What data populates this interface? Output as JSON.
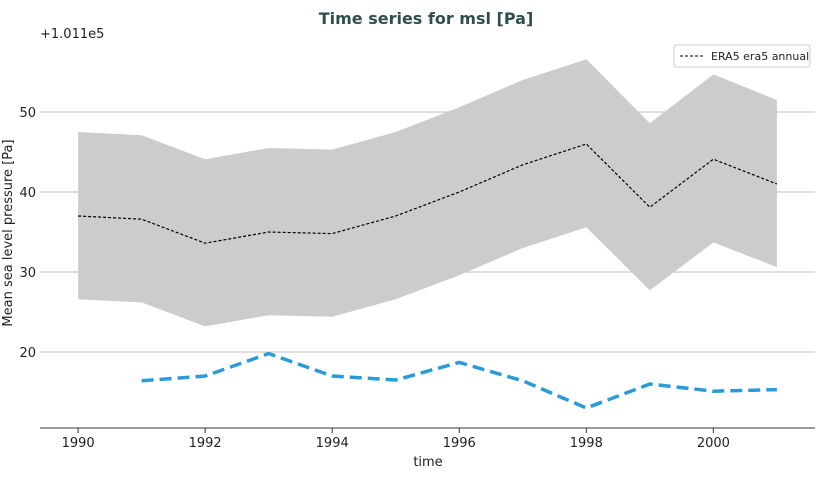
{
  "chart_data": {
    "type": "line",
    "title": "Time series for msl [Pa]",
    "xlabel": "time",
    "ylabel": "Mean sea level pressure [Pa]",
    "y_offset_label": "+1.011e5",
    "xlim": [
      1989.4,
      2001.6
    ],
    "ylim": [
      10.5,
      59.0
    ],
    "xticks": [
      1990,
      1992,
      1994,
      1996,
      1998,
      2000
    ],
    "yticks": [
      20,
      30,
      40,
      50
    ],
    "grid": "horizontal",
    "legend_position": "top-right",
    "legend": [
      "ERA5 era5 annual"
    ],
    "series": [
      {
        "name": "ERA5 era5 annual",
        "style": "dashed-thin",
        "color": "#000000",
        "x": [
          1990,
          1991,
          1992,
          1993,
          1994,
          1995,
          1996,
          1997,
          1998,
          1999,
          2000,
          2001
        ],
        "values": [
          37.0,
          36.6,
          33.6,
          35.0,
          34.8,
          37.0,
          40.0,
          43.4,
          46.0,
          38.1,
          44.1,
          41.0
        ],
        "band_upper": [
          47.5,
          47.1,
          44.1,
          45.5,
          45.3,
          47.5,
          50.6,
          54.0,
          56.6,
          48.6,
          54.7,
          51.5
        ],
        "band_lower": [
          26.6,
          26.2,
          23.2,
          24.6,
          24.4,
          26.6,
          29.6,
          33.0,
          35.6,
          27.7,
          33.7,
          30.6
        ]
      },
      {
        "style": "dashed-thick",
        "color": "#2a9ad8",
        "x": [
          1991,
          1992,
          1993,
          1994,
          1995,
          1996,
          1997,
          1998,
          1999,
          2000,
          2001
        ],
        "values": [
          16.4,
          17.0,
          19.8,
          17.0,
          16.5,
          18.7,
          16.4,
          13.0,
          16.0,
          15.1,
          15.3
        ]
      }
    ],
    "colors": {
      "title": "#2f4f4f",
      "band": "#cccccc",
      "grid": "#bfbfbf"
    }
  }
}
